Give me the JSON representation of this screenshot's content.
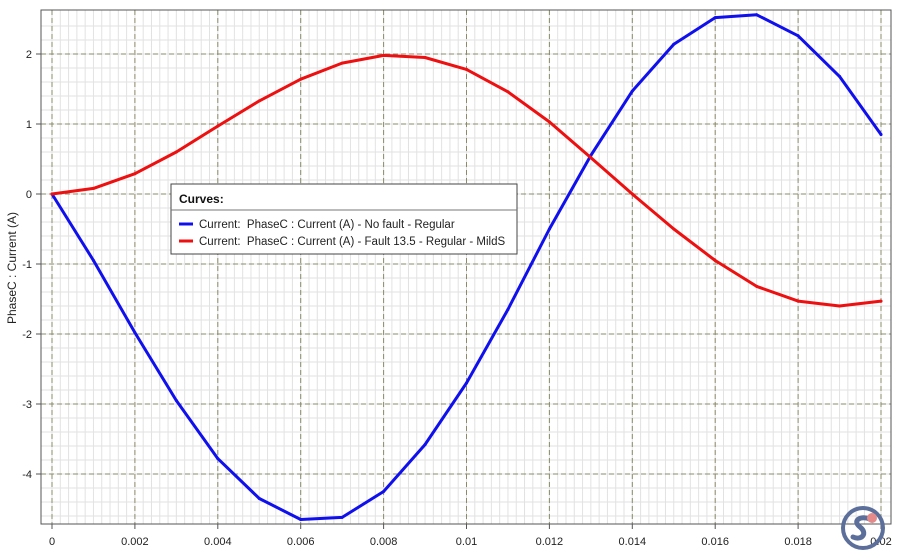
{
  "chart_data": {
    "type": "line",
    "title": "",
    "xlabel": "",
    "ylabel": "PhaseC : Current (A)",
    "xlim": [
      0,
      0.02
    ],
    "ylim": [
      -4.75,
      2.6
    ],
    "x_ticks": [
      0,
      0.002,
      0.004,
      0.006,
      0.008,
      0.01,
      0.012,
      0.014,
      0.016,
      0.018,
      0.02
    ],
    "x_tick_labels": [
      "0",
      "0.002",
      "0.004",
      "0.006",
      "0.008",
      "0.01",
      "0.012",
      "0.014",
      "0.016",
      "0.018",
      "0.02"
    ],
    "y_ticks": [
      -4,
      -3,
      -2,
      -1,
      0,
      1,
      2
    ],
    "y_tick_labels": [
      "-4",
      "-3",
      "-2",
      "-1",
      "0",
      "1",
      "2"
    ],
    "grid": true,
    "legend": {
      "title": "Curves:",
      "placement": "center-left"
    },
    "series": [
      {
        "name": "Current:  PhaseC : Current (A) - No fault - Regular",
        "color": "#1010ee",
        "x": [
          0,
          0.001,
          0.002,
          0.003,
          0.004,
          0.005,
          0.006,
          0.007,
          0.008,
          0.009,
          0.01,
          0.011,
          0.012,
          0.013,
          0.014,
          0.015,
          0.016,
          0.017,
          0.018,
          0.019,
          0.02
        ],
        "y": [
          0,
          -0.95,
          -1.98,
          -2.95,
          -3.78,
          -4.35,
          -4.65,
          -4.62,
          -4.25,
          -3.58,
          -2.7,
          -1.65,
          -0.5,
          0.55,
          1.47,
          2.14,
          2.52,
          2.56,
          2.26,
          1.68,
          0.85
        ]
      },
      {
        "name": "Current:  PhaseC : Current (A) - Fault 13.5 - Regular - MildS",
        "color": "#ee1010",
        "x": [
          0,
          0.001,
          0.002,
          0.003,
          0.004,
          0.005,
          0.006,
          0.007,
          0.008,
          0.009,
          0.01,
          0.011,
          0.012,
          0.013,
          0.014,
          0.015,
          0.016,
          0.017,
          0.018,
          0.019,
          0.02
        ],
        "y": [
          0,
          0.08,
          0.29,
          0.6,
          0.97,
          1.33,
          1.64,
          1.87,
          1.98,
          1.95,
          1.78,
          1.46,
          1.03,
          0.52,
          0.0,
          -0.5,
          -0.95,
          -1.32,
          -1.53,
          -1.6,
          -1.53
        ]
      }
    ]
  },
  "colors": {
    "axis": "#555555",
    "grid_minor": "#e2e2e2",
    "grid_major": "#8b8b6a",
    "logo_primary": "#5b6f9a",
    "logo_secondary": "#e58a8a"
  }
}
